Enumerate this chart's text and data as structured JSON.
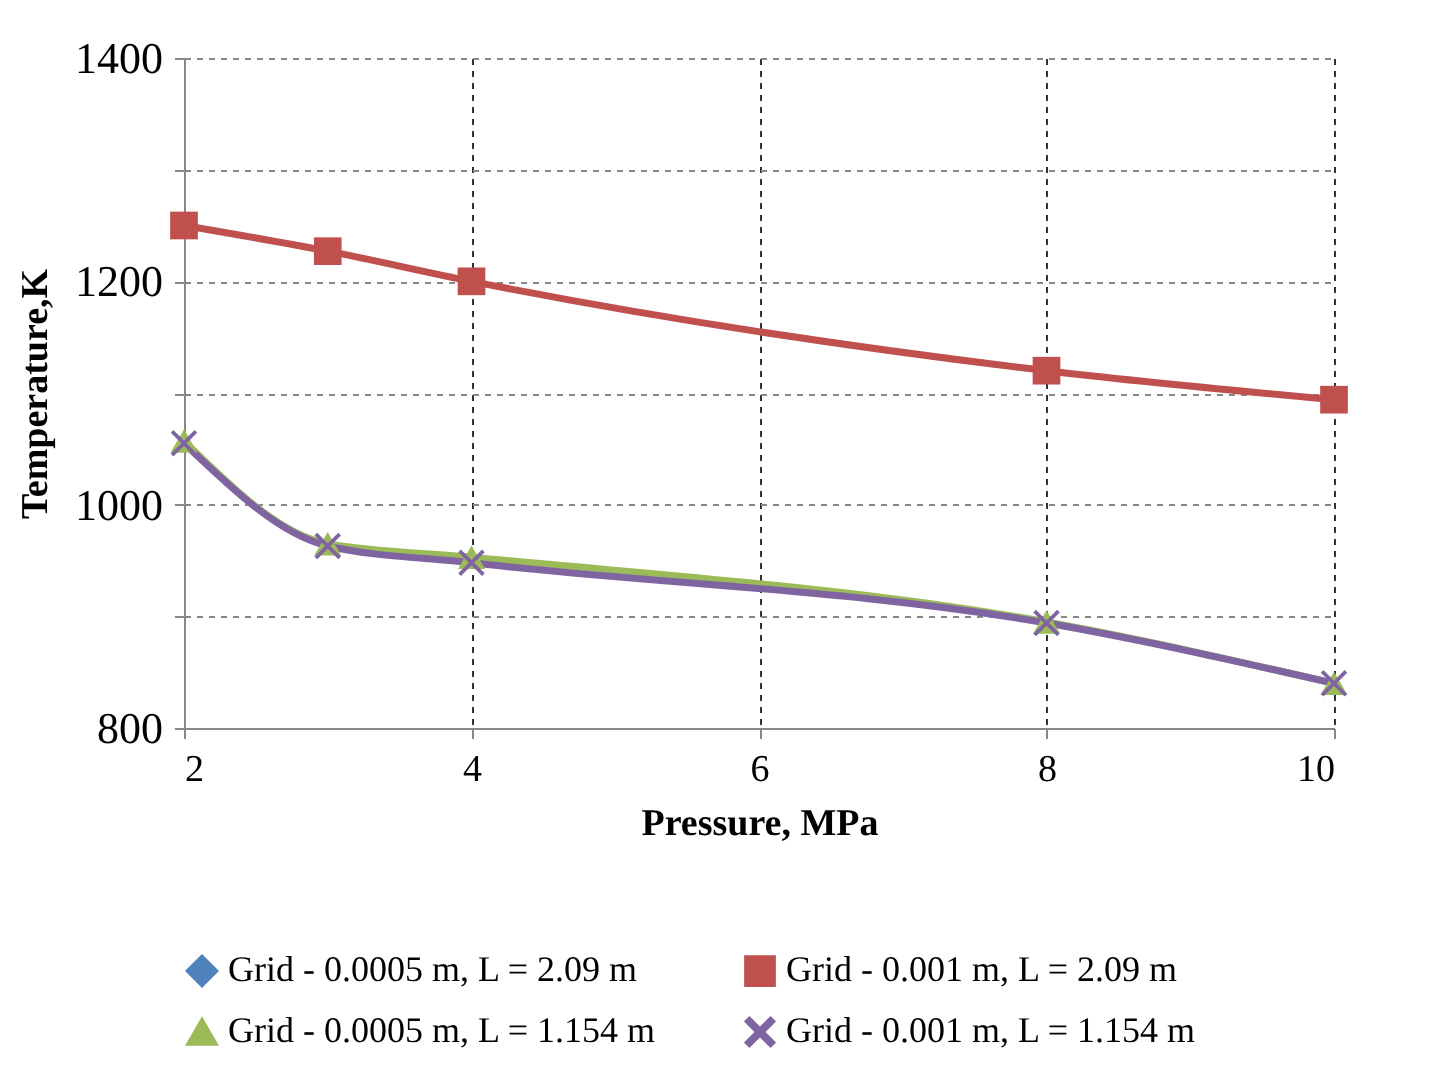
{
  "chart_data": {
    "type": "line",
    "xlabel": "Pressure, MPa",
    "ylabel": "Temperature,K",
    "x": [
      2,
      3,
      4,
      8,
      10
    ],
    "series": [
      {
        "name": "Grid - 0.0005 m, L = 2.09 m",
        "color": "#4f81bd",
        "marker": "diamond",
        "values": [
          null,
          null,
          null,
          null,
          null
        ]
      },
      {
        "name": "Grid - 0.001 m, L = 2.09 m",
        "color": "#c0504d",
        "marker": "square",
        "values": [
          1250,
          1227,
          1200,
          1120,
          1094
        ]
      },
      {
        "name": "Grid - 0.0005 m, L = 1.154 m",
        "color": "#9bbb59",
        "marker": "triangle",
        "values": [
          1057,
          965,
          953,
          895,
          840
        ]
      },
      {
        "name": "Grid - 0.001 m, L = 1.154 m",
        "color": "#8064a2",
        "marker": "cross",
        "values": [
          1055,
          963,
          948,
          894,
          840
        ]
      }
    ],
    "xlim": [
      2,
      10
    ],
    "xticks": [
      2,
      4,
      6,
      8,
      10
    ],
    "ylim": [
      800,
      1400
    ],
    "yticks": [
      800,
      {
        "value": 900,
        "label": null
      },
      1000,
      {
        "value": 1100,
        "label": null
      },
      1200,
      {
        "value": 1300,
        "label": null
      },
      1400
    ],
    "grid": true,
    "legend": "bottom"
  }
}
